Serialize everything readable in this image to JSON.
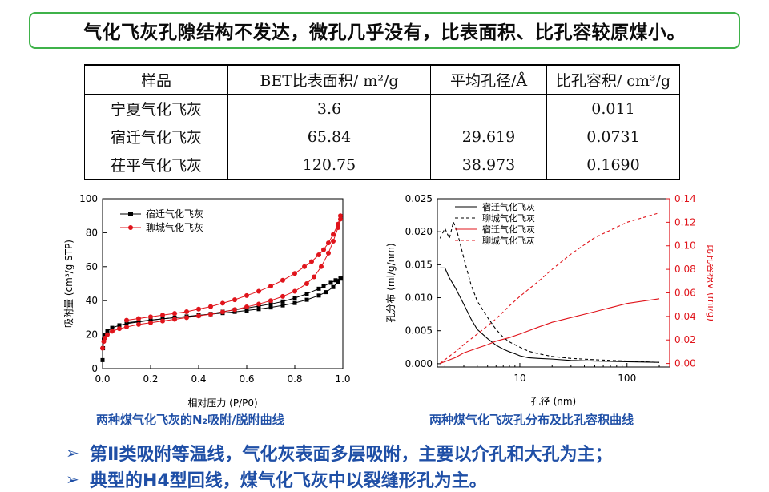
{
  "banner": "气化飞灰孔隙结构不发达，微孔几乎没有，比表面积、比孔容较原煤小。",
  "table": {
    "headers": [
      "样品",
      "BET比表面积/ m²/g",
      "平均孔径/Å",
      "比孔容积/ cm³/g"
    ],
    "rows": [
      [
        "宁夏气化飞灰",
        "3.6",
        "",
        "0.011"
      ],
      [
        "宿迁气化飞灰",
        "65.84",
        "29.619",
        "0.0731"
      ],
      [
        "茌平气化飞灰",
        "120.75",
        "38.973",
        "0.1690"
      ]
    ]
  },
  "captions": {
    "left": "两种煤气化飞灰的N₂吸附/脱附曲线",
    "right": "两种煤气化飞灰孔分布及比孔容积曲线"
  },
  "bullets": [
    "第Ⅱ类吸附等温线，气化灰表面多层吸附，主要以介孔和大孔为主；",
    "典型的H4型回线，煤气化飞灰中以裂缝形孔为主。"
  ],
  "colors": {
    "banner_border": "#3fb24a",
    "bullet_text": "#1f4fa6",
    "series_red": "#e0141b",
    "series_black": "#000000"
  },
  "chart_data": [
    {
      "type": "scatter",
      "xlabel": "相对压力 (P/P0)",
      "ylabel": "吸附量 (cm³/g STP)",
      "xlim": [
        0.0,
        1.0
      ],
      "ylim": [
        0,
        100
      ],
      "xticks": [
        "0.0",
        "0.2",
        "0.4",
        "0.6",
        "0.8",
        "1.0"
      ],
      "yticks": [
        "0",
        "20",
        "40",
        "60",
        "80",
        "100"
      ],
      "legend": "top-left",
      "series": [
        {
          "name": "宿迁气化飞灰",
          "color": "#000000",
          "marker": "square",
          "adsorption": [
            [
              0.0,
              5
            ],
            [
              0.002,
              12
            ],
            [
              0.005,
              17
            ],
            [
              0.01,
              20
            ],
            [
              0.02,
              22
            ],
            [
              0.04,
              24
            ],
            [
              0.07,
              25.5
            ],
            [
              0.1,
              26.5
            ],
            [
              0.15,
              27.5
            ],
            [
              0.2,
              28.5
            ],
            [
              0.25,
              29.3
            ],
            [
              0.3,
              30
            ],
            [
              0.35,
              30.7
            ],
            [
              0.4,
              31.4
            ],
            [
              0.45,
              32
            ],
            [
              0.5,
              32.7
            ],
            [
              0.55,
              33.4
            ],
            [
              0.6,
              34.2
            ],
            [
              0.65,
              35
            ],
            [
              0.7,
              36
            ],
            [
              0.75,
              37.2
            ],
            [
              0.8,
              38.6
            ],
            [
              0.85,
              40.5
            ],
            [
              0.9,
              43
            ],
            [
              0.93,
              45
            ],
            [
              0.96,
              48
            ],
            [
              0.98,
              51
            ],
            [
              0.99,
              53
            ]
          ],
          "desorption": [
            [
              0.99,
              53
            ],
            [
              0.97,
              52
            ],
            [
              0.95,
              50.5
            ],
            [
              0.92,
              48.5
            ],
            [
              0.9,
              47
            ],
            [
              0.85,
              44
            ],
            [
              0.8,
              41.5
            ],
            [
              0.75,
              39.5
            ],
            [
              0.7,
              38
            ],
            [
              0.65,
              36.8
            ],
            [
              0.6,
              35.6
            ],
            [
              0.55,
              34.6
            ],
            [
              0.5,
              33.5
            ],
            [
              0.45,
              32.2
            ],
            [
              0.4,
              31.2
            ],
            [
              0.35,
              30.5
            ],
            [
              0.3,
              30
            ],
            [
              0.25,
              29.3
            ],
            [
              0.2,
              28.6
            ],
            [
              0.15,
              27.8
            ],
            [
              0.1,
              27
            ]
          ]
        },
        {
          "name": "聊城气化飞灰",
          "color": "#e0141b",
          "marker": "circle",
          "adsorption": [
            [
              0.0,
              12
            ],
            [
              0.005,
              16
            ],
            [
              0.01,
              18
            ],
            [
              0.02,
              20
            ],
            [
              0.04,
              22
            ],
            [
              0.07,
              23.5
            ],
            [
              0.1,
              24.5
            ],
            [
              0.15,
              26
            ],
            [
              0.2,
              27
            ],
            [
              0.25,
              28
            ],
            [
              0.3,
              29
            ],
            [
              0.35,
              30
            ],
            [
              0.4,
              31
            ],
            [
              0.45,
              32
            ],
            [
              0.5,
              33.3
            ],
            [
              0.55,
              34.7
            ],
            [
              0.6,
              36.3
            ],
            [
              0.65,
              38
            ],
            [
              0.7,
              40
            ],
            [
              0.75,
              42.5
            ],
            [
              0.8,
              45.5
            ],
            [
              0.85,
              50
            ],
            [
              0.88,
              54
            ],
            [
              0.91,
              60
            ],
            [
              0.94,
              68
            ],
            [
              0.96,
              75
            ],
            [
              0.98,
              83
            ],
            [
              0.99,
              88
            ]
          ],
          "desorption": [
            [
              0.99,
              90
            ],
            [
              0.98,
              85
            ],
            [
              0.96,
              79
            ],
            [
              0.94,
              74
            ],
            [
              0.92,
              70
            ],
            [
              0.9,
              67
            ],
            [
              0.87,
              63
            ],
            [
              0.84,
              60
            ],
            [
              0.8,
              56
            ],
            [
              0.75,
              52
            ],
            [
              0.7,
              48.5
            ],
            [
              0.65,
              45.5
            ],
            [
              0.6,
              43
            ],
            [
              0.55,
              40.5
            ],
            [
              0.5,
              38.5
            ],
            [
              0.45,
              36.5
            ],
            [
              0.4,
              35
            ],
            [
              0.35,
              33.5
            ],
            [
              0.3,
              32.5
            ],
            [
              0.25,
              31.5
            ],
            [
              0.2,
              30.5
            ],
            [
              0.15,
              29.5
            ],
            [
              0.1,
              28.5
            ]
          ]
        }
      ]
    },
    {
      "type": "line",
      "xlabel": "孔径 (nm)",
      "ylabel_left": "孔分布 (ml/g/nm)",
      "ylabel_right": "比孔容积V (ml/g)",
      "xscale": "log",
      "xlim": [
        1.7,
        250
      ],
      "xticks": [
        "10",
        "100"
      ],
      "ylim_left": [
        -0.0005,
        0.025
      ],
      "yticks_left": [
        "0.000",
        "0.005",
        "0.010",
        "0.015",
        "0.020",
        "0.025"
      ],
      "ylim_right": [
        -0.003,
        0.14
      ],
      "yticks_right": [
        "0.00",
        "0.02",
        "0.04",
        "0.06",
        "0.08",
        "0.10",
        "0.12",
        "0.14"
      ],
      "legend": "top-left",
      "series": [
        {
          "name": "宿迁气化飞灰",
          "axis": "left",
          "color": "#000000",
          "dash": "solid",
          "x": [
            1.8,
            2.0,
            2.2,
            2.5,
            3,
            3.5,
            4,
            5,
            6,
            7,
            8,
            9,
            10,
            12,
            15,
            20,
            30,
            50,
            100,
            200
          ],
          "y": [
            0.0145,
            0.0145,
            0.013,
            0.0115,
            0.009,
            0.0068,
            0.0052,
            0.0038,
            0.0028,
            0.0022,
            0.0018,
            0.0015,
            0.0012,
            0.0009,
            0.0008,
            0.0007,
            0.0005,
            0.0004,
            0.0003,
            0.0002
          ]
        },
        {
          "name": "聊城气化飞灰",
          "axis": "left",
          "color": "#000000",
          "dash": "dashed",
          "x": [
            1.8,
            2.0,
            2.2,
            2.4,
            2.6,
            3,
            3.5,
            4,
            5,
            6,
            7,
            8,
            10,
            12,
            15,
            20,
            30,
            50,
            100,
            200
          ],
          "y": [
            0.019,
            0.0205,
            0.019,
            0.0215,
            0.02,
            0.016,
            0.012,
            0.0095,
            0.007,
            0.0052,
            0.004,
            0.0033,
            0.0025,
            0.0019,
            0.0015,
            0.0011,
            0.0008,
            0.0006,
            0.0004,
            0.0002
          ]
        },
        {
          "name": "宿迁气化飞灰",
          "axis": "right",
          "color": "#e0141b",
          "dash": "solid",
          "x": [
            1.8,
            2.5,
            3,
            4,
            5,
            6,
            8,
            10,
            15,
            20,
            30,
            50,
            100,
            200
          ],
          "y": [
            0.0,
            0.005,
            0.009,
            0.013,
            0.016,
            0.019,
            0.022,
            0.025,
            0.031,
            0.035,
            0.039,
            0.044,
            0.051,
            0.055
          ]
        },
        {
          "name": "聊城气化飞灰",
          "axis": "right",
          "color": "#e0141b",
          "dash": "dashed",
          "x": [
            1.8,
            2.5,
            3,
            4,
            5,
            6,
            8,
            10,
            15,
            20,
            30,
            50,
            100,
            200
          ],
          "y": [
            0.0,
            0.01,
            0.016,
            0.025,
            0.032,
            0.038,
            0.049,
            0.057,
            0.07,
            0.08,
            0.093,
            0.107,
            0.12,
            0.128
          ]
        }
      ]
    }
  ]
}
